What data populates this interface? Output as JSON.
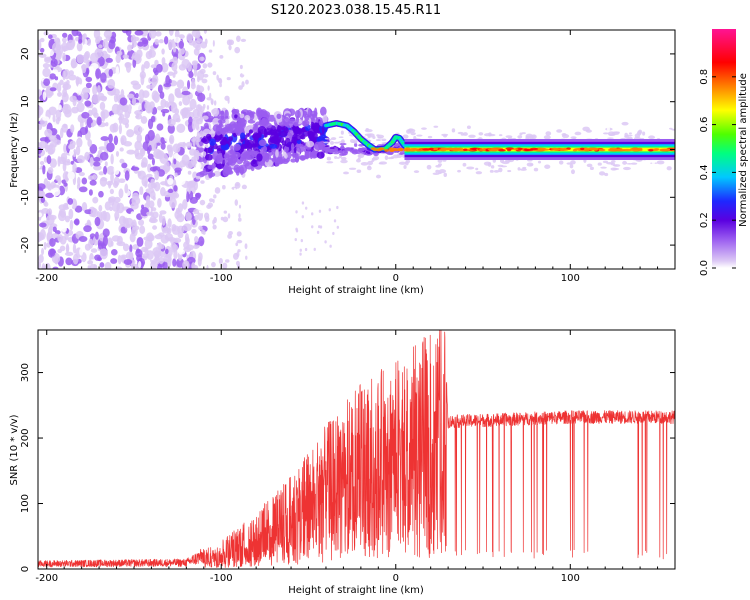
{
  "title": "S120.2023.038.15.45.R11",
  "chart_data": [
    {
      "type": "heatmap",
      "xlabel": "Height of straight line (km)",
      "ylabel": "Frequency (Hz)",
      "xlim": [
        -205,
        160
      ],
      "ylim": [
        -25,
        25
      ],
      "x_ticks": [
        -200,
        -100,
        0,
        100
      ],
      "y_ticks": [
        -20,
        -10,
        0,
        10,
        20
      ],
      "colorbar": {
        "label": "Normalized spectral amplitude",
        "range": [
          0,
          1
        ],
        "ticks": [
          0.0,
          0.2,
          0.4,
          0.6,
          0.8
        ],
        "colormap": [
          "#ffffff",
          "#dcc8f5",
          "#9a5cf0",
          "#5a00e0",
          "#1e28ff",
          "#00c8ff",
          "#00ff80",
          "#50ff00",
          "#ffff00",
          "#ff8000",
          "#ff0000",
          "#ff1493"
        ]
      },
      "features": [
        {
          "name": "noise",
          "x_range": [
            -205,
            -110
          ],
          "freq_range": [
            -25,
            25
          ],
          "amplitude": 0.15
        },
        {
          "name": "transition",
          "x_range": [
            -110,
            -40
          ],
          "freq_range": [
            -10,
            10
          ],
          "amplitude": 0.25
        },
        {
          "name": "carrier",
          "x_range": [
            -40,
            160
          ],
          "freq_hz": 0,
          "amplitude": 0.9
        }
      ]
    },
    {
      "type": "line",
      "xlabel": "Height of straight line (km)",
      "ylabel": "SNR (10 * v/v)",
      "xlim": [
        -205,
        160
      ],
      "ylim": [
        0,
        365
      ],
      "x_ticks": [
        -200,
        -100,
        0,
        100
      ],
      "y_ticks": [
        0,
        100,
        200,
        300
      ],
      "color": "#ee3333",
      "envelope": [
        {
          "x": -205,
          "y": 10
        },
        {
          "x": -120,
          "y": 12
        },
        {
          "x": -100,
          "y": 40
        },
        {
          "x": -80,
          "y": 80
        },
        {
          "x": -60,
          "y": 130
        },
        {
          "x": -40,
          "y": 200
        },
        {
          "x": -20,
          "y": 260
        },
        {
          "x": 0,
          "y": 290
        },
        {
          "x": 15,
          "y": 320
        },
        {
          "x": 28,
          "y": 345
        },
        {
          "x": 30,
          "y": 225
        },
        {
          "x": 100,
          "y": 232
        },
        {
          "x": 160,
          "y": 232
        }
      ]
    }
  ]
}
